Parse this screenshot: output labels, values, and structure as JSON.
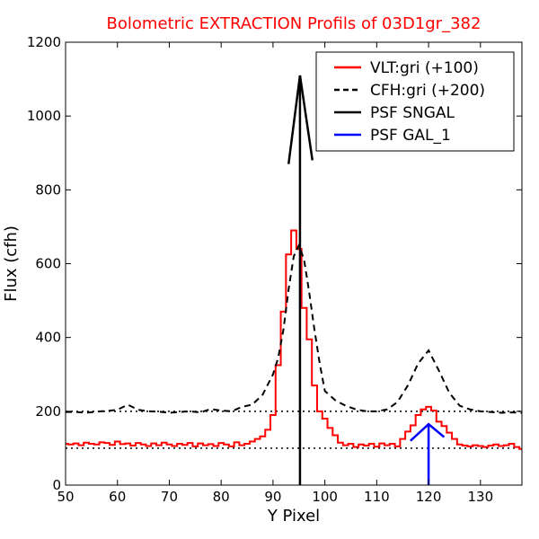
{
  "chart_data": {
    "type": "line",
    "title": "Bolometric EXTRACTION Profils of 03D1gr_382",
    "xlabel": "Y Pixel",
    "ylabel": "Flux (cfh)",
    "xlim": [
      50,
      138
    ],
    "ylim": [
      0,
      1200
    ],
    "xticks": [
      50,
      60,
      70,
      80,
      90,
      100,
      110,
      120,
      130
    ],
    "yticks": [
      0,
      200,
      400,
      600,
      800,
      1000,
      1200
    ],
    "legend_position": "top-right",
    "legend": [
      {
        "label": "VLT:gri (+100)",
        "color": "#ff0000",
        "style": "solid"
      },
      {
        "label": "CFH:gri (+200)",
        "color": "#000000",
        "style": "dashed"
      },
      {
        "label": "PSF SNGAL",
        "color": "#000000",
        "style": "solid"
      },
      {
        "label": "PSF GAL_1",
        "color": "#0000ff",
        "style": "solid"
      }
    ],
    "reference_lines": [
      {
        "y": 100,
        "style": "dotted",
        "color": "#000000"
      },
      {
        "y": 200,
        "style": "dotted",
        "color": "#000000"
      }
    ],
    "series": [
      {
        "name": "VLT:gri (+100)",
        "style": "steps",
        "color": "#ff0000",
        "x": [
          50,
          51,
          52,
          53,
          54,
          55,
          56,
          57,
          58,
          59,
          60,
          61,
          62,
          63,
          64,
          65,
          66,
          67,
          68,
          69,
          70,
          71,
          72,
          73,
          74,
          75,
          76,
          77,
          78,
          79,
          80,
          81,
          82,
          83,
          84,
          85,
          86,
          87,
          88,
          89,
          90,
          91,
          92,
          93,
          94,
          95,
          96,
          97,
          98,
          99,
          100,
          101,
          102,
          103,
          104,
          105,
          106,
          107,
          108,
          109,
          110,
          111,
          112,
          113,
          114,
          115,
          116,
          117,
          118,
          119,
          120,
          121,
          122,
          123,
          124,
          125,
          126,
          127,
          128,
          129,
          130,
          131,
          132,
          133,
          134,
          135,
          136,
          137,
          138
        ],
        "y": [
          112,
          110,
          113,
          108,
          115,
          112,
          110,
          116,
          114,
          109,
          118,
          111,
          113,
          107,
          114,
          110,
          106,
          113,
          108,
          115,
          110,
          106,
          112,
          109,
          114,
          105,
          113,
          108,
          111,
          106,
          114,
          110,
          105,
          116,
          108,
          112,
          118,
          125,
          132,
          150,
          190,
          325,
          470,
          625,
          690,
          640,
          480,
          395,
          270,
          200,
          180,
          155,
          135,
          115,
          108,
          112,
          103,
          110,
          107,
          112,
          104,
          113,
          108,
          112,
          105,
          125,
          145,
          162,
          190,
          205,
          212,
          202,
          172,
          160,
          142,
          125,
          110,
          107,
          105,
          108,
          106,
          103,
          107,
          110,
          106,
          108,
          112,
          103,
          98
        ]
      },
      {
        "name": "CFH:gri (+200)",
        "style": "dashed",
        "color": "#000000",
        "x": [
          50,
          52,
          54,
          56,
          58,
          60,
          62,
          64,
          66,
          68,
          70,
          72,
          74,
          76,
          78,
          80,
          82,
          84,
          86,
          88,
          90,
          91,
          92,
          93,
          94,
          95,
          96,
          97,
          98,
          99,
          100,
          102,
          104,
          106,
          108,
          110,
          112,
          114,
          116,
          118,
          120,
          122,
          124,
          126,
          128,
          130,
          132,
          134,
          136,
          138
        ],
        "y": [
          198,
          198,
          196,
          199,
          201,
          204,
          218,
          204,
          200,
          199,
          196,
          198,
          200,
          197,
          206,
          202,
          200,
          212,
          218,
          245,
          300,
          345,
          420,
          530,
          620,
          650,
          610,
          520,
          420,
          330,
          255,
          230,
          215,
          205,
          200,
          200,
          205,
          225,
          270,
          330,
          365,
          310,
          250,
          215,
          205,
          200,
          198,
          196,
          197,
          196
        ]
      },
      {
        "name": "PSF SNGAL",
        "style": "solid",
        "color": "#000000",
        "x": [
          95.2,
          95.2
        ],
        "y": [
          0,
          1110
        ],
        "arrow_head": {
          "left": [
            93.0,
            870
          ],
          "tip": [
            95.2,
            1110
          ],
          "right": [
            97.6,
            880
          ]
        }
      },
      {
        "name": "PSF GAL_1",
        "style": "solid",
        "color": "#0000ff",
        "x": [
          120,
          120
        ],
        "y": [
          0,
          165
        ],
        "arrow_head": {
          "left": [
            116.5,
            120
          ],
          "tip": [
            120,
            165
          ],
          "right": [
            123.0,
            130
          ]
        }
      }
    ]
  }
}
